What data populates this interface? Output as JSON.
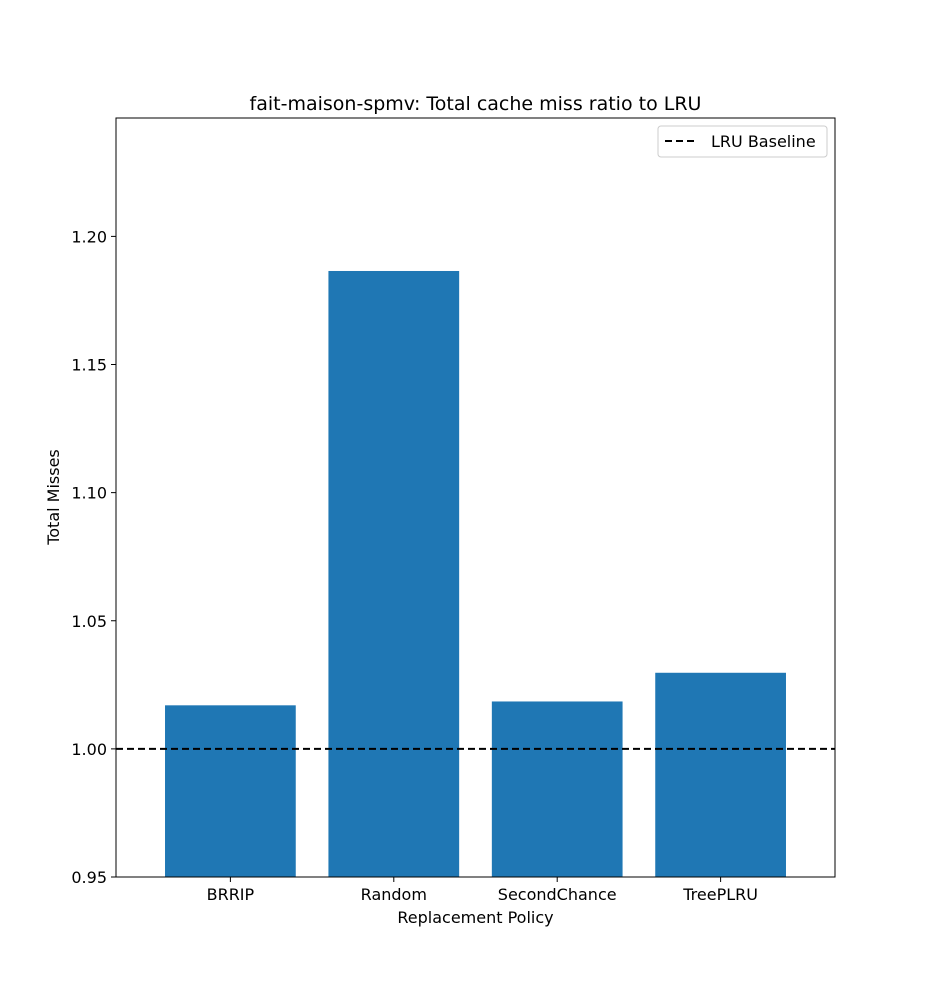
{
  "chart_data": {
    "type": "bar",
    "title": "fait-maison-spmv: Total cache miss ratio to LRU",
    "xlabel": "Replacement Policy",
    "ylabel": "Total Misses",
    "categories": [
      "BRRIP",
      "Random",
      "SecondChance",
      "TreePLRU"
    ],
    "values": [
      1.017,
      1.1865,
      1.0185,
      1.0297
    ],
    "ylim": [
      0.95,
      1.2462
    ],
    "yticks": [
      0.95,
      1.0,
      1.05,
      1.1,
      1.15,
      1.2
    ],
    "ytick_labels": [
      "0.95",
      "1.00",
      "1.05",
      "1.10",
      "1.15",
      "1.20"
    ],
    "baseline": {
      "value": 1.0,
      "style": "dashed",
      "color": "#000000",
      "label": "LRU Baseline"
    },
    "bar_color": "#1f77b4",
    "grid": false,
    "legend": {
      "position": "top-right",
      "entries": [
        "LRU Baseline"
      ]
    }
  }
}
